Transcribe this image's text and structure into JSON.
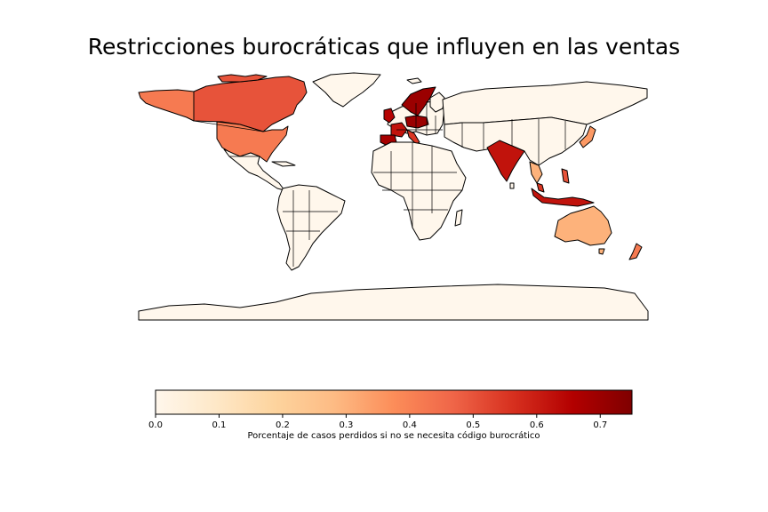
{
  "title": "Restricciones burocráticas que influyen en las ventas",
  "colorbar": {
    "label": "Porcentaje de casos perdidos si no se necesita código burocrático",
    "min": 0.0,
    "max": 0.75,
    "ticks": [
      "0.0",
      "0.1",
      "0.2",
      "0.3",
      "0.4",
      "0.5",
      "0.6",
      "0.7"
    ],
    "colormap": "OrRd",
    "stops": [
      "#fff7ec",
      "#fee8c8",
      "#fdd49e",
      "#fdbb84",
      "#fc8d59",
      "#ef6548",
      "#d7301f",
      "#b30000",
      "#7f0000"
    ]
  },
  "chart_data": {
    "type": "choropleth",
    "title": "Restricciones burocráticas que influyen en las ventas",
    "value_label": "Porcentaje de casos perdidos si no se necesita código burocrático",
    "range": [
      0.0,
      0.75
    ],
    "regions": [
      {
        "name": "Canada",
        "value": 0.5
      },
      {
        "name": "United States",
        "value": 0.42
      },
      {
        "name": "Alaska",
        "value": 0.42
      },
      {
        "name": "Greenland",
        "value": 0.0
      },
      {
        "name": "Mexico",
        "value": 0.0
      },
      {
        "name": "Brazil",
        "value": 0.0
      },
      {
        "name": "South America (other)",
        "value": 0.0
      },
      {
        "name": "Norway",
        "value": 0.62
      },
      {
        "name": "Sweden",
        "value": 0.7
      },
      {
        "name": "Finland",
        "value": 0.0
      },
      {
        "name": "United Kingdom",
        "value": 0.65
      },
      {
        "name": "France",
        "value": 0.62
      },
      {
        "name": "Spain",
        "value": 0.68
      },
      {
        "name": "Portugal",
        "value": 0.5
      },
      {
        "name": "Germany",
        "value": 0.7
      },
      {
        "name": "Italy",
        "value": 0.55
      },
      {
        "name": "Poland",
        "value": 0.65
      },
      {
        "name": "Russia",
        "value": 0.0
      },
      {
        "name": "Africa",
        "value": 0.0
      },
      {
        "name": "India",
        "value": 0.62
      },
      {
        "name": "Thailand",
        "value": 0.3
      },
      {
        "name": "Malaysia",
        "value": 0.55
      },
      {
        "name": "Indonesia",
        "value": 0.62
      },
      {
        "name": "Philippines",
        "value": 0.5
      },
      {
        "name": "Japan",
        "value": 0.35
      },
      {
        "name": "China",
        "value": 0.0
      },
      {
        "name": "Australia",
        "value": 0.3
      },
      {
        "name": "New Zealand",
        "value": 0.42
      },
      {
        "name": "Antarctica",
        "value": 0.0
      }
    ]
  }
}
